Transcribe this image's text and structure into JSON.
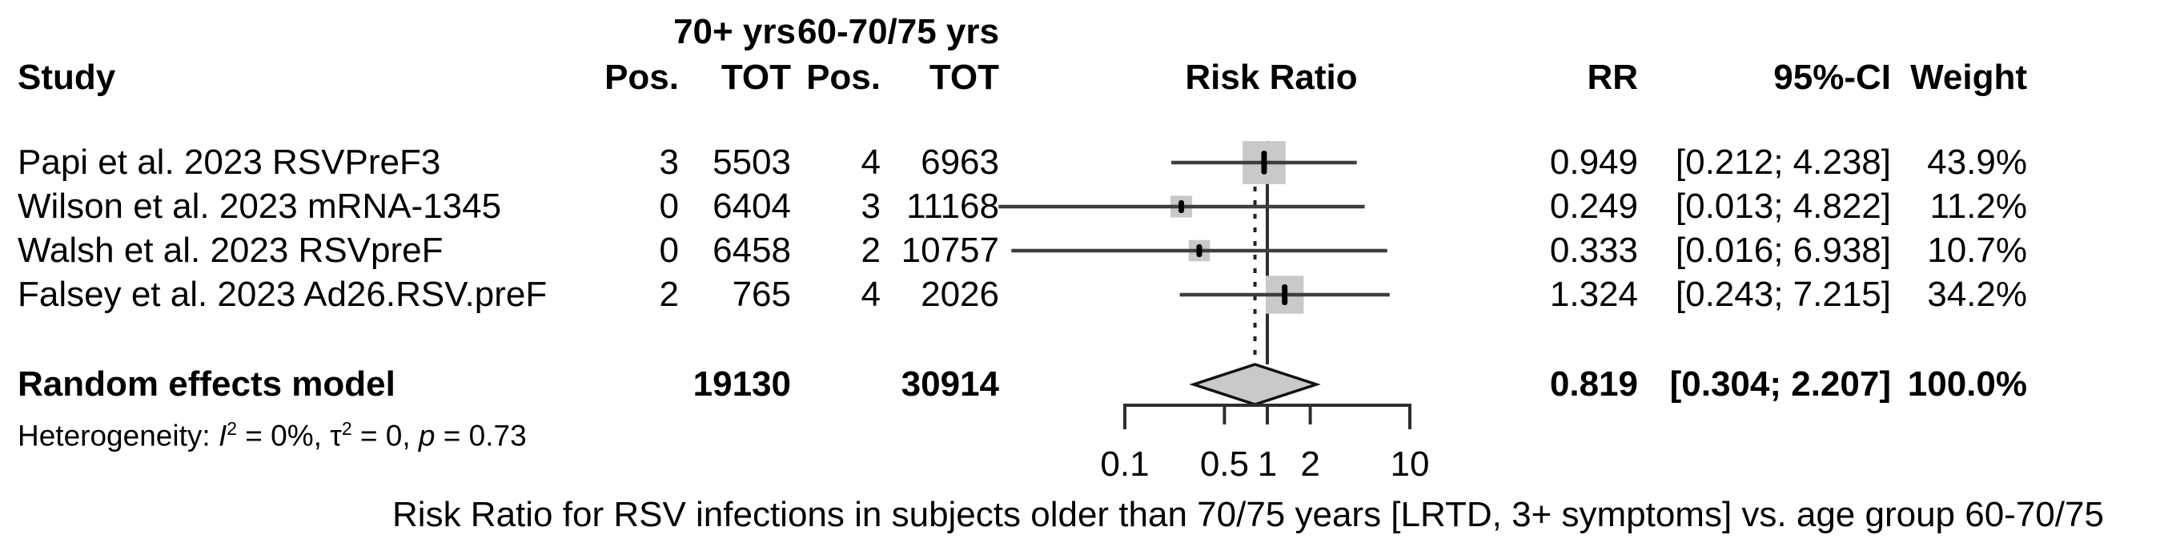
{
  "table": {
    "group_headers": {
      "g1": "70+ yrs",
      "g2": "60-70/75 yrs"
    },
    "columns": {
      "study": "Study",
      "pos1": "Pos.",
      "tot1": "TOT",
      "pos2": "Pos.",
      "tot2": "TOT",
      "plot": "Risk Ratio",
      "rr": "RR",
      "ci": "95%-CI",
      "weight": "Weight"
    }
  },
  "chart_data": {
    "type": "forest",
    "title": "Risk Ratio",
    "x_scale": "log10",
    "xlim": [
      0.1,
      10
    ],
    "axis_ticks": [
      0.1,
      0.5,
      1,
      2,
      10
    ],
    "axis_tick_labels": [
      "0.1",
      "0.5",
      "1",
      "2",
      "10"
    ],
    "ref_line": 1.0,
    "studies": [
      {
        "label": "Papi et al. 2023 RSVPreF3",
        "pos1": "3",
        "tot1": "5503",
        "pos2": "4",
        "tot2": "6963",
        "rr": 0.949,
        "ci_lo": 0.212,
        "ci_hi": 4.238,
        "rr_text": "0.949",
        "ci_text": "[0.212; 4.238]",
        "weight": 43.9,
        "weight_text": "43.9%"
      },
      {
        "label": "Wilson et al. 2023 mRNA-1345",
        "pos1": "0",
        "tot1": "6404",
        "pos2": "3",
        "tot2": "11168",
        "rr": 0.249,
        "ci_lo": 0.013,
        "ci_hi": 4.822,
        "rr_text": "0.249",
        "ci_text": "[0.013; 4.822]",
        "weight": 11.2,
        "weight_text": "11.2%"
      },
      {
        "label": "Walsh et al. 2023 RSVpreF",
        "pos1": "0",
        "tot1": "6458",
        "pos2": "2",
        "tot2": "10757",
        "rr": 0.333,
        "ci_lo": 0.016,
        "ci_hi": 6.938,
        "rr_text": "0.333",
        "ci_text": "[0.016; 6.938]",
        "weight": 10.7,
        "weight_text": "10.7%"
      },
      {
        "label": "Falsey et al. 2023 Ad26.RSV.preF",
        "pos1": "2",
        "tot1": "765",
        "pos2": "4",
        "tot2": "2026",
        "rr": 1.324,
        "ci_lo": 0.243,
        "ci_hi": 7.215,
        "rr_text": "1.324",
        "ci_text": "[0.243; 7.215]",
        "weight": 34.2,
        "weight_text": "34.2%"
      }
    ],
    "summary": {
      "label": "Random effects model",
      "tot1": "19130",
      "tot2": "30914",
      "rr": 0.819,
      "ci_lo": 0.304,
      "ci_hi": 2.207,
      "rr_text": "0.819",
      "ci_text": "[0.304; 2.207]",
      "weight_text": "100.0%"
    },
    "heterogeneity": {
      "prefix": "Heterogeneity: ",
      "i_label": "I",
      "i_sup": "2",
      "seg1": " = 0%, ",
      "tau_label": "τ",
      "tau_sup": "2",
      "seg2": " = 0, ",
      "p_label": "p",
      "seg3": " = 0.73"
    },
    "caption": "Risk Ratio for RSV infections in subjects older than 70/75 years [LRTD, 3+ symptoms] vs. age group 60-70/75"
  },
  "colors": {
    "square": "#c9c9c9",
    "diamond_fill": "#c9c9c9",
    "diamond_stroke": "#111111",
    "ci_line": "#3d3d3d",
    "axis": "#2e2e2e",
    "dashed_line": "#222222",
    "marker": "#000000",
    "text": "#000000",
    "background": "#ffffff"
  }
}
